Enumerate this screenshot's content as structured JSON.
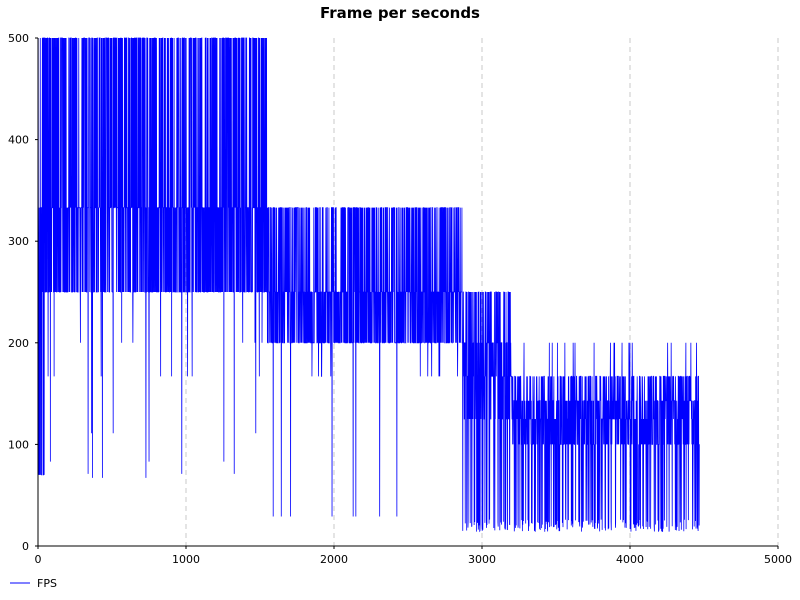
{
  "chart_data": {
    "type": "line",
    "title": "Frame per seconds",
    "xlabel": "",
    "ylabel": "",
    "xlim": [
      0,
      5000
    ],
    "ylim": [
      0,
      500
    ],
    "x_ticks": [
      0,
      1000,
      2000,
      3000,
      4000,
      5000
    ],
    "y_ticks": [
      0,
      100,
      200,
      300,
      400,
      500
    ],
    "grid": {
      "x": "dashed",
      "y": "off"
    },
    "legend": {
      "position": "bottom-left",
      "entries": [
        "FPS"
      ]
    },
    "series": [
      {
        "name": "FPS",
        "color": "#0000ff",
        "bands": [
          {
            "x": [
              0,
              50
            ],
            "levels": [
              333,
              500,
              250,
              70
            ],
            "spikes": []
          },
          {
            "x": [
              50,
              1550
            ],
            "levels": [
              333,
              500,
              250
            ],
            "spikes": [
              200,
              167,
              111,
              83,
              71,
              67
            ]
          },
          {
            "x": [
              1550,
              2450
            ],
            "levels": [
              333,
              250,
              200
            ],
            "spikes": [
              167,
              29
            ]
          },
          {
            "x": [
              2450,
              2870
            ],
            "levels": [
              250,
              200,
              333
            ],
            "spikes": [
              167
            ]
          },
          {
            "x": [
              2870,
              3200
            ],
            "levels": [
              250,
              200,
              167,
              125,
              20
            ],
            "spikes": []
          },
          {
            "x": [
              3200,
              4470
            ],
            "levels": [
              167,
              143,
              125,
              100,
              20
            ],
            "spikes": [
              200
            ]
          }
        ]
      }
    ]
  }
}
